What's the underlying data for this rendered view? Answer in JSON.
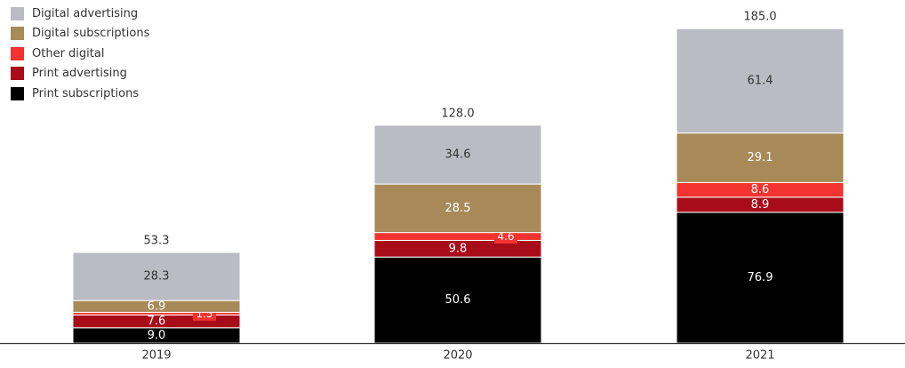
{
  "colors": {
    "digital_advertising": "#bbbbc3",
    "digital_subscriptions": "#a88958",
    "other_digital": "#f2332f",
    "print_advertising": "#a80c18",
    "print_subscriptions": "#000000"
  },
  "chart_data": {
    "type": "bar",
    "stacked": true,
    "title": "",
    "xlabel": "",
    "ylabel": "",
    "ylim": [
      0,
      210
    ],
    "grid": false,
    "legend_position": "top-left",
    "categories": [
      "2019",
      "2020",
      "2021"
    ],
    "totals": [
      "53.3",
      "128.0",
      "185.0"
    ],
    "series": [
      {
        "name": "Print subscriptions",
        "key": "print_subscriptions",
        "values": [
          9.0,
          50.6,
          76.9
        ],
        "labels": [
          "9.0",
          "50.6",
          "76.9"
        ]
      },
      {
        "name": "Print advertising",
        "key": "print_advertising",
        "values": [
          7.6,
          9.8,
          8.9
        ],
        "labels": [
          "7.6",
          "9.8",
          "8.9"
        ]
      },
      {
        "name": "Other digital",
        "key": "other_digital",
        "values": [
          1.5,
          4.6,
          8.6
        ],
        "labels": [
          "1.5",
          "4.6",
          "8.6"
        ]
      },
      {
        "name": "Digital subscriptions",
        "key": "digital_subscriptions",
        "values": [
          6.9,
          28.5,
          29.1
        ],
        "labels": [
          "6.9",
          "28.5",
          "29.1"
        ]
      },
      {
        "name": "Digital advertising",
        "key": "digital_advertising",
        "values": [
          28.3,
          34.6,
          61.4
        ],
        "labels": [
          "28.3",
          "34.6",
          "61.4"
        ]
      }
    ],
    "legend_order": [
      "Digital advertising",
      "Digital subscriptions",
      "Other digital",
      "Print advertising",
      "Print subscriptions"
    ]
  }
}
